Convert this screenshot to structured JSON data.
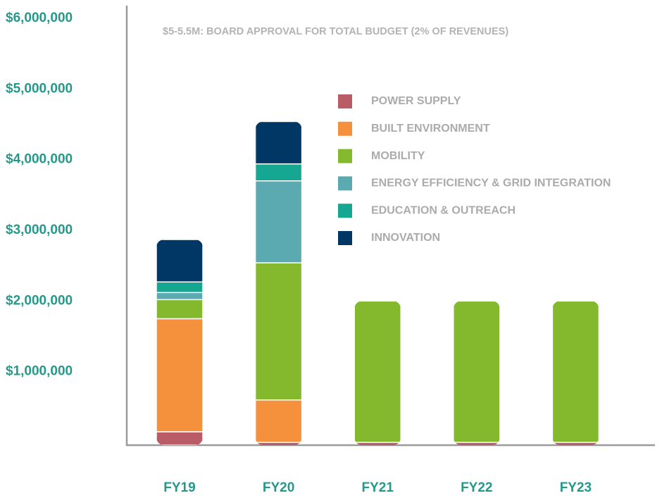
{
  "chart_data": {
    "type": "stacked_bar",
    "annotation": "$5-5.5M: BOARD APPROVAL FOR TOTAL BUDGET (2% OF REVENUES)",
    "categories": [
      "FY19",
      "FY20",
      "FY21",
      "FY22",
      "FY23"
    ],
    "series": [
      {
        "name": "POWER SUPPLY",
        "color": "#b95c67",
        "values": [
          150000,
          0,
          0,
          0,
          0
        ]
      },
      {
        "name": "BUILT ENVIRONMENT",
        "color": "#f5913c",
        "values": [
          1600000,
          600000,
          0,
          0,
          0
        ]
      },
      {
        "name": "MOBILITY",
        "color": "#84b92d",
        "values": [
          270000,
          1940000,
          2000000,
          2000000,
          2000000
        ]
      },
      {
        "name": "ENERGY EFFICIENCY & GRID INTEGRATION",
        "color": "#5ba9b1",
        "values": [
          100000,
          1160000,
          0,
          0,
          0
        ]
      },
      {
        "name": "EDUCATION & OUTREACH",
        "color": "#15a792",
        "values": [
          150000,
          240000,
          0,
          0,
          0
        ]
      },
      {
        "name": "INNOVATION",
        "color": "#013764",
        "values": [
          600000,
          600000,
          0,
          0,
          0
        ]
      }
    ],
    "ylim": [
      0,
      6000000
    ],
    "yticks": [
      {
        "value": 1000000,
        "label": "$1,000,000"
      },
      {
        "value": 2000000,
        "label": "$2,000,000"
      },
      {
        "value": 3000000,
        "label": "$3,000,000"
      },
      {
        "value": 4000000,
        "label": "$4,000,000"
      },
      {
        "value": 5000000,
        "label": "$5,000,000"
      },
      {
        "value": 6000000,
        "label": "$6,000,000"
      }
    ],
    "grid": false,
    "legend": "upper right"
  }
}
